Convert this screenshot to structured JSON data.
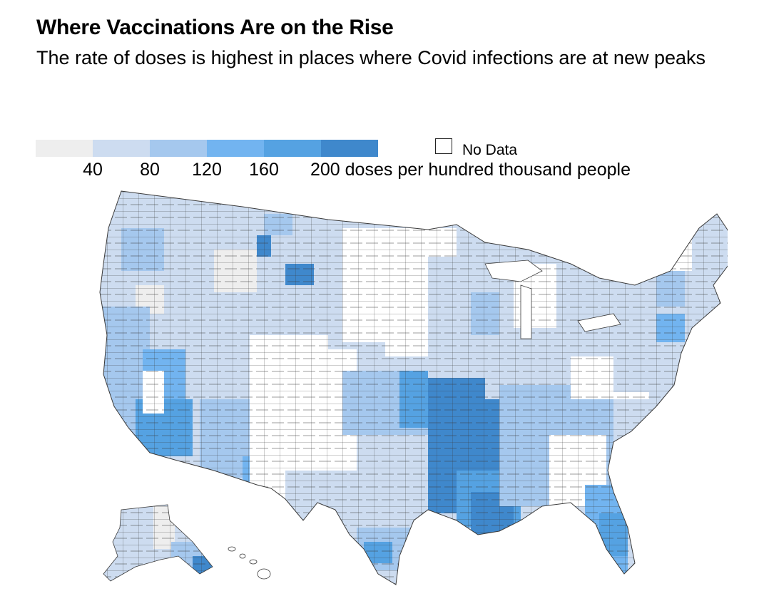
{
  "header": {
    "title": "Where Vaccinations Are on the Rise",
    "subtitle": "The rate of doses is highest in places where Covid infections are at new peaks"
  },
  "legend": {
    "bins": [
      {
        "label": "",
        "color": "#eeeeee"
      },
      {
        "label": "40",
        "color": "#cddcf0"
      },
      {
        "label": "80",
        "color": "#a5c8ee"
      },
      {
        "label": "120",
        "color": "#72b4f0"
      },
      {
        "label": "160",
        "color": "#55a2e2"
      },
      {
        "label": "200 doses per hundred thousand people",
        "color": "#3f88cc"
      }
    ],
    "no_data_label": "No Data",
    "no_data_color": "#ffffff"
  },
  "map": {
    "region": "United States counties",
    "palette": {
      "bin0": "#eeeeee",
      "bin1": "#cddcf0",
      "bin2": "#a5c8ee",
      "bin3": "#72b4f0",
      "bin4": "#55a2e2",
      "bin5": "#3f88cc",
      "nodata": "#ffffff",
      "border": "#3a3a3a"
    }
  }
}
